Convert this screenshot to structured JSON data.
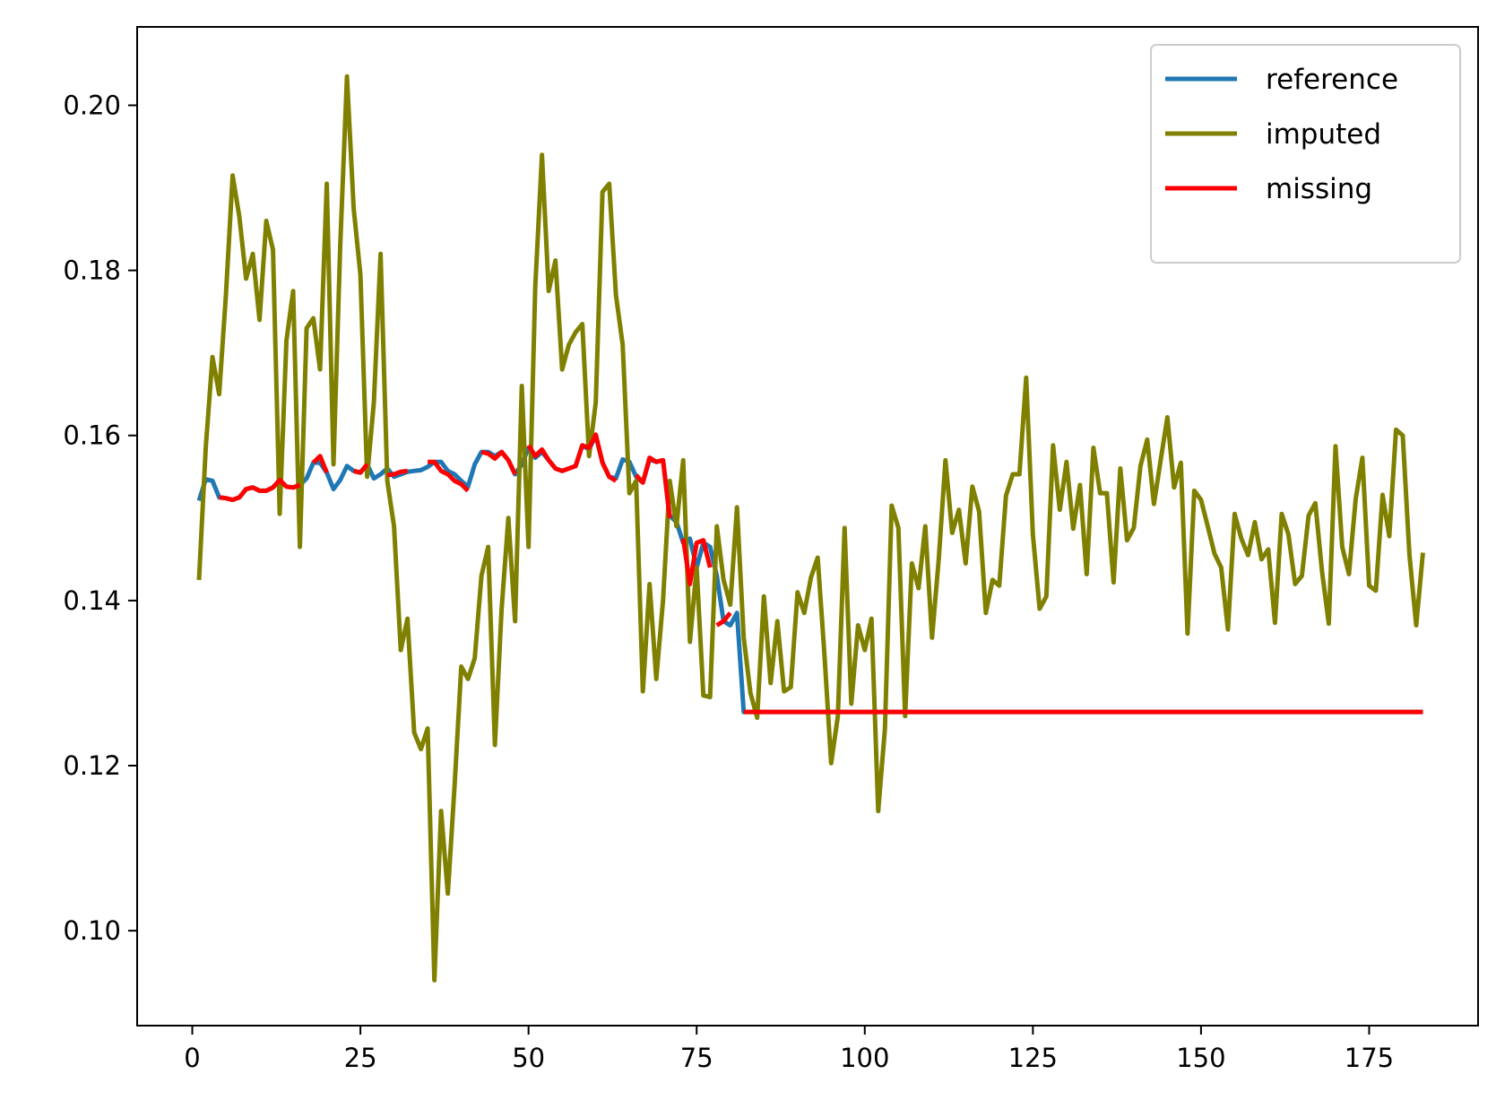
{
  "chart_data": {
    "type": "line",
    "title": "",
    "xlabel": "",
    "ylabel": "",
    "xlim": [
      -8.2,
      191.2
    ],
    "ylim": [
      0.0885,
      0.2095
    ],
    "xticks": [
      0,
      25,
      50,
      75,
      100,
      125,
      150,
      175
    ],
    "xtick_labels": [
      "0",
      "25",
      "50",
      "75",
      "100",
      "125",
      "150",
      "175"
    ],
    "yticks": [
      0.1,
      0.12,
      0.14,
      0.16,
      0.18,
      0.2
    ],
    "ytick_labels": [
      "0.10",
      "0.12",
      "0.14",
      "0.16",
      "0.18",
      "0.20"
    ],
    "grid": false,
    "legend": {
      "position": "top-right",
      "entries": [
        "reference",
        "imputed",
        "missing"
      ]
    },
    "series": [
      {
        "name": "reference",
        "color": "#1f77b4",
        "x": [
          1,
          2,
          3,
          4,
          5,
          6,
          7,
          8,
          9,
          10,
          11,
          12,
          13,
          14,
          15,
          16,
          17,
          18,
          19,
          20,
          21,
          22,
          23,
          24,
          25,
          26,
          27,
          28,
          29,
          30,
          31,
          32,
          33,
          34,
          35,
          36,
          37,
          38,
          39,
          40,
          41,
          42,
          43,
          44,
          45,
          46,
          47,
          48,
          49,
          50,
          51,
          52,
          53,
          54,
          55,
          56,
          57,
          58,
          59,
          60,
          61,
          62,
          63,
          64,
          65,
          66,
          67,
          68,
          69,
          70,
          71,
          72,
          73,
          74,
          75,
          76,
          77,
          78,
          79,
          80,
          81,
          82,
          83,
          84,
          85,
          86,
          87,
          88,
          89,
          90,
          91,
          92,
          93,
          94,
          95,
          96,
          97,
          98,
          99,
          100,
          101,
          102,
          103,
          104,
          105,
          106,
          107,
          108,
          109,
          110,
          111,
          112,
          113,
          114,
          115,
          116,
          117,
          118,
          119,
          120,
          121,
          122,
          123,
          124,
          125,
          126,
          127,
          128,
          129,
          130,
          131,
          132,
          133,
          134,
          135,
          136,
          137,
          138,
          139,
          140,
          141,
          142,
          143,
          144,
          145,
          146,
          147,
          148,
          149,
          150,
          151,
          152,
          153,
          154,
          155,
          156,
          157,
          158,
          159,
          160,
          161,
          162,
          163,
          164,
          165,
          166,
          167,
          168,
          169,
          170,
          171,
          172,
          173,
          174,
          175,
          176,
          177,
          178,
          179,
          180,
          181,
          182,
          183
        ],
        "y": [
          0.1521,
          0.1547,
          0.1545,
          0.1525,
          0.1524,
          0.1522,
          0.1525,
          0.1535,
          0.1537,
          0.1533,
          0.1533,
          0.1537,
          0.1546,
          0.1538,
          0.1537,
          0.154,
          0.1548,
          0.1567,
          0.1567,
          0.1555,
          0.1535,
          0.1546,
          0.1563,
          0.1557,
          0.1555,
          0.1565,
          0.1548,
          0.1553,
          0.156,
          0.155,
          0.1553,
          0.1556,
          0.1557,
          0.1558,
          0.1562,
          0.1568,
          0.1568,
          0.1557,
          0.1553,
          0.1545,
          0.1538,
          0.1565,
          0.158,
          0.158,
          0.1575,
          0.158,
          0.157,
          0.1553,
          0.1565,
          0.1585,
          0.1573,
          0.158,
          0.157,
          0.156,
          0.1557,
          0.156,
          0.1563,
          0.1588,
          0.1583,
          0.16,
          0.1567,
          0.155,
          0.1548,
          0.1571,
          0.1568,
          0.155,
          0.1543,
          0.1571,
          0.1568,
          0.157,
          0.1503,
          0.1495,
          0.147,
          0.1475,
          0.144,
          0.147,
          0.1465,
          0.143,
          0.1375,
          0.137,
          0.1385,
          0.1265,
          0.1265,
          0.1265,
          0.1265,
          0.1265,
          0.1265,
          0.1265,
          0.1265,
          0.1265,
          0.1265,
          0.1265,
          0.1265,
          0.1265,
          0.1265,
          0.1265,
          0.1265,
          0.1265,
          0.1265,
          0.1265,
          0.1265,
          0.1265,
          0.1265,
          0.1265,
          0.1265,
          0.1265,
          0.1265,
          0.1265,
          0.1265,
          0.1265,
          0.1265,
          0.1265,
          0.1265,
          0.1265,
          0.1265,
          0.1265,
          0.1265,
          0.1265,
          0.1265,
          0.1265,
          0.1265,
          0.1265,
          0.1265,
          0.1265,
          0.1265,
          0.1265,
          0.1265,
          0.1265,
          0.1265,
          0.1265,
          0.1265,
          0.1265,
          0.1265,
          0.1265,
          0.1265,
          0.1265,
          0.1265,
          0.1265,
          0.1265,
          0.1265,
          0.1265,
          0.1265,
          0.1265,
          0.1265,
          0.1265,
          0.1265,
          0.1265,
          0.1265,
          0.1265,
          0.1265,
          0.1265,
          0.1265,
          0.1265,
          0.1265,
          0.1265,
          0.1265,
          0.1265,
          0.1265,
          0.1265,
          0.1265,
          0.1265,
          0.1265,
          0.1265,
          0.1265,
          0.1265,
          0.1265,
          0.1265,
          0.1265,
          0.1265,
          0.1265,
          0.1265,
          0.1265,
          0.1265,
          0.1265,
          0.1265,
          0.1265,
          0.1265,
          0.1265,
          0.1265,
          0.1265,
          0.1265,
          0.1265,
          0.1265
        ]
      },
      {
        "name": "imputed",
        "color": "#808000",
        "x": [
          1,
          2,
          3,
          4,
          5,
          6,
          7,
          8,
          9,
          10,
          11,
          12,
          13,
          14,
          15,
          16,
          17,
          18,
          19,
          20,
          21,
          22,
          23,
          24,
          25,
          26,
          27,
          28,
          29,
          30,
          31,
          32,
          33,
          34,
          35,
          36,
          37,
          38,
          39,
          40,
          41,
          42,
          43,
          44,
          45,
          46,
          47,
          48,
          49,
          50,
          51,
          52,
          53,
          54,
          55,
          56,
          57,
          58,
          59,
          60,
          61,
          62,
          63,
          64,
          65,
          66,
          67,
          68,
          69,
          70,
          71,
          72,
          73,
          74,
          75,
          76,
          77,
          78,
          79,
          80,
          81,
          82,
          83,
          84,
          85,
          86,
          87,
          88,
          89,
          90,
          91,
          92,
          93,
          94,
          95,
          96,
          97,
          98,
          99,
          100,
          101,
          102,
          103,
          104,
          105,
          106,
          107,
          108,
          109,
          110,
          111,
          112,
          113,
          114,
          115,
          116,
          117,
          118,
          119,
          120,
          121,
          122,
          123,
          124,
          125,
          126,
          127,
          128,
          129,
          130,
          131,
          132,
          133,
          134,
          135,
          136,
          137,
          138,
          139,
          140,
          141,
          142,
          143,
          144,
          145,
          146,
          147,
          148,
          149,
          150,
          151,
          152,
          153,
          154,
          155,
          156,
          157,
          158,
          159,
          160,
          161,
          162,
          163,
          164,
          165,
          166,
          167,
          168,
          169,
          170,
          171,
          172,
          173,
          174,
          175,
          176,
          177,
          178,
          179,
          180,
          181,
          182,
          183
        ],
        "y": [
          0.1425,
          0.1585,
          0.1695,
          0.165,
          0.177,
          0.1915,
          0.1865,
          0.179,
          0.182,
          0.174,
          0.186,
          0.1825,
          0.1505,
          0.1715,
          0.1775,
          0.1465,
          0.173,
          0.1742,
          0.168,
          0.1905,
          0.1565,
          0.183,
          0.2035,
          0.1875,
          0.1795,
          0.155,
          0.164,
          0.182,
          0.1545,
          0.149,
          0.134,
          0.1378,
          0.124,
          0.122,
          0.1245,
          0.094,
          0.1145,
          0.1045,
          0.1175,
          0.132,
          0.1305,
          0.133,
          0.143,
          0.1465,
          0.1225,
          0.139,
          0.15,
          0.1375,
          0.166,
          0.1465,
          0.178,
          0.194,
          0.1775,
          0.1812,
          0.168,
          0.171,
          0.1725,
          0.1735,
          0.1575,
          0.164,
          0.1895,
          0.1905,
          0.177,
          0.171,
          0.153,
          0.1545,
          0.129,
          0.142,
          0.1305,
          0.14,
          0.1545,
          0.149,
          0.157,
          0.135,
          0.144,
          0.1285,
          0.1283,
          0.149,
          0.1425,
          0.1395,
          0.1513,
          0.1355,
          0.1288,
          0.1258,
          0.1405,
          0.13,
          0.1375,
          0.129,
          0.1295,
          0.141,
          0.1385,
          0.1428,
          0.1452,
          0.1335,
          0.1203,
          0.126,
          0.1488,
          0.1275,
          0.137,
          0.134,
          0.1378,
          0.1145,
          0.1245,
          0.1515,
          0.1488,
          0.126,
          0.1445,
          0.1415,
          0.149,
          0.1355,
          0.145,
          0.157,
          0.1482,
          0.151,
          0.1445,
          0.1538,
          0.1508,
          0.1385,
          0.1425,
          0.1418,
          0.1527,
          0.1553,
          0.1553,
          0.167,
          0.148,
          0.139,
          0.1405,
          0.1588,
          0.151,
          0.1568,
          0.1487,
          0.154,
          0.1432,
          0.1585,
          0.153,
          0.153,
          0.1422,
          0.156,
          0.1473,
          0.1488,
          0.1563,
          0.1595,
          0.1517,
          0.157,
          0.1622,
          0.1537,
          0.1567,
          0.136,
          0.1533,
          0.1522,
          0.149,
          0.1457,
          0.144,
          0.1365,
          0.1505,
          0.1475,
          0.1455,
          0.1495,
          0.145,
          0.1462,
          0.1373,
          0.1505,
          0.148,
          0.142,
          0.143,
          0.1503,
          0.1518,
          0.1435,
          0.1372,
          0.1587,
          0.1465,
          0.1432,
          0.1523,
          0.1573,
          0.1418,
          0.1412,
          0.1528,
          0.1478,
          0.1607,
          0.16,
          0.1455,
          0.137,
          0.1458
        ]
      },
      {
        "name": "missing",
        "color": "#ff0000",
        "segments": [
          {
            "x": [
              4,
              5,
              6,
              7,
              8,
              9,
              10,
              11,
              12,
              13,
              14,
              15,
              16
            ],
            "y": [
              0.1525,
              0.1524,
              0.1522,
              0.1525,
              0.1535,
              0.1537,
              0.1533,
              0.1533,
              0.1537,
              0.1546,
              0.1538,
              0.1537,
              0.154
            ]
          },
          {
            "x": [
              18,
              19,
              20
            ],
            "y": [
              0.1567,
              0.1575,
              0.1555
            ]
          },
          {
            "x": [
              24,
              25,
              26
            ],
            "y": [
              0.1557,
              0.1555,
              0.1565
            ]
          },
          {
            "x": [
              29,
              30,
              31,
              32
            ],
            "y": [
              0.1552,
              0.1553,
              0.1556,
              0.1557
            ]
          },
          {
            "x": [
              35,
              36,
              37,
              38,
              39,
              40,
              41
            ],
            "y": [
              0.1568,
              0.1568,
              0.1557,
              0.1553,
              0.1545,
              0.1541,
              0.1533
            ]
          },
          {
            "x": [
              43,
              44,
              45,
              46,
              47,
              48
            ],
            "y": [
              0.158,
              0.1578,
              0.1572,
              0.158,
              0.157,
              0.1553
            ]
          },
          {
            "x": [
              50,
              51,
              52,
              53,
              54,
              55,
              56,
              57,
              58,
              59,
              60,
              61,
              62,
              63
            ],
            "y": [
              0.1588,
              0.1575,
              0.1583,
              0.157,
              0.156,
              0.1557,
              0.156,
              0.1563,
              0.1588,
              0.1585,
              0.1601,
              0.1567,
              0.155,
              0.1545
            ]
          },
          {
            "x": [
              66,
              67,
              68,
              69,
              70,
              71
            ],
            "y": [
              0.1552,
              0.1543,
              0.1573,
              0.1568,
              0.157,
              0.15
            ]
          },
          {
            "x": [
              73,
              74,
              75,
              76,
              77
            ],
            "y": [
              0.1475,
              0.142,
              0.147,
              0.1473,
              0.144
            ]
          },
          {
            "x": [
              78,
              79,
              80
            ],
            "y": [
              0.137,
              0.1375,
              0.1385
            ]
          },
          {
            "x": [
              82,
              183
            ],
            "y": [
              0.1265,
              0.1265
            ]
          }
        ]
      }
    ]
  }
}
